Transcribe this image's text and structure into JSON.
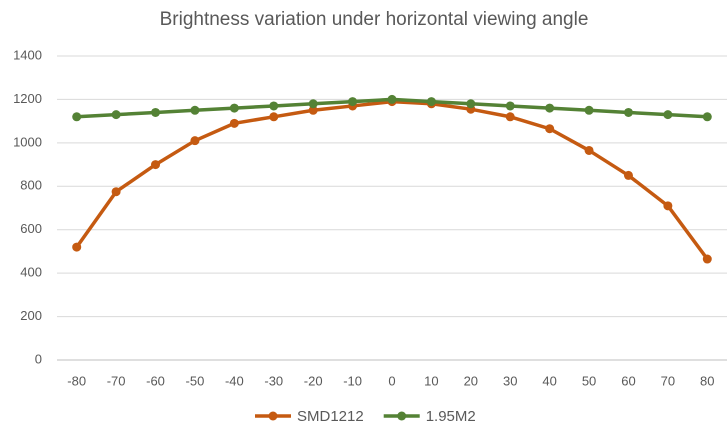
{
  "chart_data": {
    "type": "line",
    "title": "Brightness variation under horizontal viewing angle",
    "categories": [
      "-80",
      "-70",
      "-60",
      "-50",
      "-40",
      "-30",
      "-20",
      "-10",
      "0",
      "10",
      "20",
      "30",
      "40",
      "50",
      "60",
      "70",
      "80"
    ],
    "series": [
      {
        "name": "SMD1212",
        "color": "#c55a11",
        "values": [
          520,
          775,
          900,
          1010,
          1090,
          1120,
          1150,
          1170,
          1190,
          1180,
          1155,
          1120,
          1065,
          965,
          850,
          710,
          465
        ]
      },
      {
        "name": "1.95M2",
        "color": "#548235",
        "values": [
          1120,
          1130,
          1140,
          1150,
          1160,
          1170,
          1180,
          1190,
          1200,
          1190,
          1180,
          1170,
          1160,
          1150,
          1140,
          1130,
          1120
        ]
      }
    ],
    "ylim": [
      0,
      1400
    ],
    "yticks": [
      0,
      200,
      400,
      600,
      800,
      1000,
      1200,
      1400
    ],
    "grid": true,
    "legend": "bottom"
  }
}
